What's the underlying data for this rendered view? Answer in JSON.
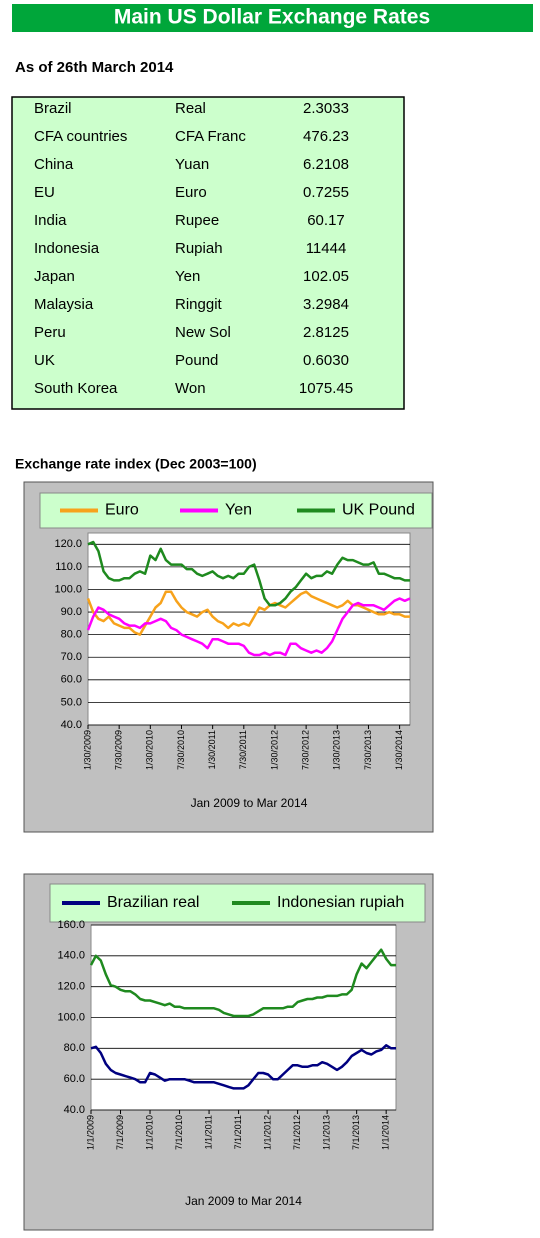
{
  "title": "Main US Dollar Exchange Rates",
  "date_note": "As of 26th March 2014",
  "table": {
    "rows": [
      [
        "Brazil",
        "Real",
        "2.3033"
      ],
      [
        "CFA countries",
        "CFA Franc",
        "476.23"
      ],
      [
        "China",
        "Yuan",
        "6.2108"
      ],
      [
        "EU",
        "Euro",
        "0.7255"
      ],
      [
        "India",
        "Rupee",
        "60.17"
      ],
      [
        "Indonesia",
        "Rupiah",
        "11444"
      ],
      [
        "Japan",
        "Yen",
        "102.05"
      ],
      [
        "Malaysia",
        "Ringgit",
        "3.2984"
      ],
      [
        "Peru",
        "New Sol",
        "2.8125"
      ],
      [
        "UK",
        "Pound",
        "0.6030"
      ],
      [
        "South Korea",
        "Won",
        "1075.45"
      ]
    ]
  },
  "chart_data": [
    {
      "type": "line",
      "title": "Exchange rate index (Dec 2003=100)",
      "x_label": "Jan 2009 to Mar 2014",
      "categories": [
        "1/30/2009",
        null,
        null,
        null,
        null,
        null,
        "7/30/2009",
        null,
        null,
        null,
        null,
        null,
        "1/30/2010",
        null,
        null,
        null,
        null,
        null,
        "7/30/2010",
        null,
        null,
        null,
        null,
        null,
        "1/30/2011",
        null,
        null,
        null,
        null,
        null,
        "7/30/2011",
        null,
        null,
        null,
        null,
        null,
        "1/30/2012",
        null,
        null,
        null,
        null,
        null,
        "7/30/2012",
        null,
        null,
        null,
        null,
        null,
        "1/30/2013",
        null,
        null,
        null,
        null,
        null,
        "7/30/2013",
        null,
        null,
        null,
        null,
        null,
        "1/30/2014",
        null,
        null
      ],
      "series": [
        {
          "name": "Euro",
          "color": "#f7a21b",
          "values": [
            96,
            90,
            87,
            86,
            88,
            85,
            84,
            83,
            83,
            81,
            80,
            84,
            88,
            92,
            94,
            99,
            99,
            95,
            92,
            90,
            89,
            88,
            90,
            91,
            88,
            86,
            85,
            83,
            85,
            84,
            85,
            84,
            88,
            92,
            91,
            93,
            94,
            93,
            92,
            94,
            96,
            98,
            99,
            97,
            96,
            95,
            94,
            93,
            92,
            93,
            95,
            93,
            93,
            92,
            91,
            90,
            89,
            89,
            90,
            89,
            89,
            88,
            88
          ]
        },
        {
          "name": "Yen",
          "color": "#ff00ff",
          "values": [
            82,
            88,
            92,
            91,
            89,
            88,
            87,
            85,
            84,
            84,
            83,
            85,
            85,
            86,
            87,
            86,
            83,
            82,
            80,
            79,
            78,
            77,
            76,
            74,
            78,
            78,
            77,
            76,
            76,
            76,
            75,
            72,
            71,
            71,
            72,
            71,
            72,
            72,
            71,
            76,
            76,
            74,
            73,
            72,
            73,
            72,
            74,
            77,
            82,
            87,
            90,
            93,
            94,
            93,
            93,
            93,
            92,
            91,
            93,
            95,
            96,
            95,
            96
          ]
        },
        {
          "name": "UK Pound",
          "color": "#1f8a1f",
          "values": [
            120,
            121,
            117,
            108,
            105,
            104,
            104,
            105,
            105,
            107,
            108,
            107,
            115,
            113,
            118,
            113,
            111,
            111,
            111,
            109,
            109,
            107,
            106,
            107,
            108,
            106,
            105,
            106,
            105,
            107,
            107,
            110,
            111,
            104,
            96,
            93,
            93,
            94,
            96,
            99,
            101,
            104,
            107,
            105,
            106,
            106,
            108,
            107,
            111,
            114,
            113,
            113,
            112,
            111,
            111,
            112,
            107,
            107,
            106,
            105,
            105,
            104,
            104
          ]
        }
      ],
      "ylim": [
        40,
        125
      ],
      "yticks": [
        {
          "value": 40,
          "label": "40.0"
        },
        {
          "value": 50,
          "label": "50.0"
        },
        {
          "value": 60,
          "label": "60.0"
        },
        {
          "value": 70,
          "label": "70.0"
        },
        {
          "value": 80,
          "label": "80.0"
        },
        {
          "value": 90,
          "label": "90.0"
        },
        {
          "value": 100,
          "label": "100.0"
        },
        {
          "value": 110,
          "label": "110.0"
        },
        {
          "value": 120,
          "label": "120.0"
        }
      ],
      "grid": true
    },
    {
      "type": "line",
      "x_label": "Jan 2009 to Mar 2014",
      "categories": [
        "1/1/2009",
        null,
        null,
        null,
        null,
        null,
        "7/1/2009",
        null,
        null,
        null,
        null,
        null,
        "1/1/2010",
        null,
        null,
        null,
        null,
        null,
        "7/1/2010",
        null,
        null,
        null,
        null,
        null,
        "1/1/2011",
        null,
        null,
        null,
        null,
        null,
        "7/1/2011",
        null,
        null,
        null,
        null,
        null,
        "1/1/2012",
        null,
        null,
        null,
        null,
        null,
        "7/1/2012",
        null,
        null,
        null,
        null,
        null,
        "1/1/2013",
        null,
        null,
        null,
        null,
        null,
        "7/1/2013",
        null,
        null,
        null,
        null,
        null,
        "1/1/2014",
        null,
        null
      ],
      "series": [
        {
          "name": "Brazilian real",
          "color": "#000080",
          "values": [
            80,
            81,
            77,
            70,
            66,
            64,
            63,
            62,
            61,
            60,
            58,
            58,
            64,
            63,
            61,
            59,
            60,
            60,
            60,
            60,
            59,
            58,
            58,
            58,
            58,
            58,
            57,
            56,
            55,
            54,
            54,
            54,
            56,
            60,
            64,
            64,
            63,
            60,
            60,
            63,
            66,
            69,
            69,
            68,
            68,
            69,
            69,
            71,
            70,
            68,
            66,
            68,
            71,
            75,
            77,
            79,
            77,
            76,
            78,
            79,
            82,
            80,
            80
          ]
        },
        {
          "name": "Indonesian rupiah",
          "color": "#1f8a1f",
          "values": [
            134,
            140,
            137,
            128,
            121,
            120,
            118,
            117,
            117,
            115,
            112,
            111,
            111,
            110,
            109,
            108,
            109,
            107,
            107,
            106,
            106,
            106,
            106,
            106,
            106,
            106,
            105,
            103,
            102,
            101,
            101,
            101,
            101,
            102,
            104,
            106,
            106,
            106,
            106,
            106,
            107,
            107,
            110,
            111,
            112,
            112,
            113,
            113,
            114,
            114,
            114,
            115,
            115,
            118,
            128,
            135,
            132,
            136,
            140,
            144,
            138,
            134,
            134
          ]
        }
      ],
      "ylim": [
        40,
        160
      ],
      "yticks": [
        {
          "value": 40,
          "label": "40.0"
        },
        {
          "value": 60,
          "label": "60.0"
        },
        {
          "value": 80,
          "label": "80.0"
        },
        {
          "value": 100,
          "label": "100.0"
        },
        {
          "value": 120,
          "label": "120.0"
        },
        {
          "value": 140,
          "label": "140.0"
        },
        {
          "value": 160,
          "label": "160.0"
        }
      ],
      "grid": true
    }
  ]
}
